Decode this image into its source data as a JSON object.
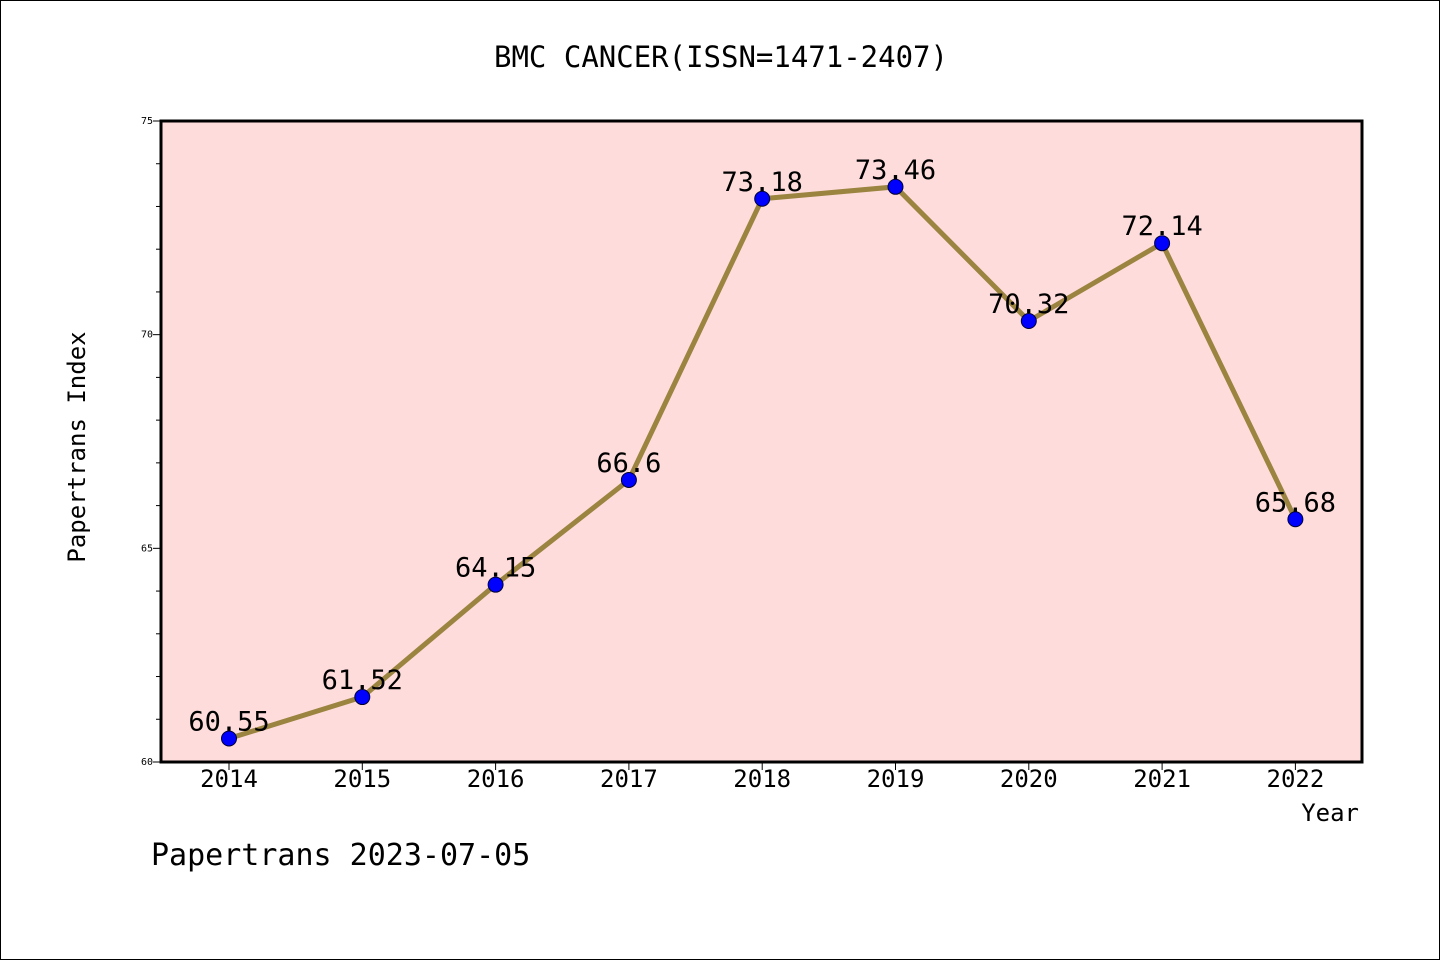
{
  "chart_data": {
    "type": "line",
    "title": "BMC CANCER(ISSN=1471-2407)",
    "xlabel": "Year",
    "ylabel": "Papertrans Index",
    "footer": "Papertrans 2023-07-05",
    "categories": [
      "2014",
      "2015",
      "2016",
      "2017",
      "2018",
      "2019",
      "2020",
      "2021",
      "2022"
    ],
    "series": [
      {
        "values": [
          60.55,
          61.52,
          64.15,
          66.6,
          73.18,
          73.46,
          70.32,
          72.14,
          65.68
        ],
        "labels": [
          "60.55",
          "61.52",
          "64.15",
          "66.6",
          "73.18",
          "73.46",
          "70.32",
          "72.14",
          "65.68"
        ],
        "line_color": "#9a8440",
        "marker_color": "#0000ff"
      }
    ],
    "ylim": [
      60,
      75
    ],
    "y_ticks": [
      {
        "value": 60,
        "label": "60"
      },
      {
        "value": 65,
        "label": "65"
      },
      {
        "value": 70,
        "label": "70"
      },
      {
        "value": 75,
        "label": "75"
      }
    ],
    "y_minor_step": 1,
    "plot_background": "#ffdcdc",
    "grid": false,
    "legend": "none"
  }
}
